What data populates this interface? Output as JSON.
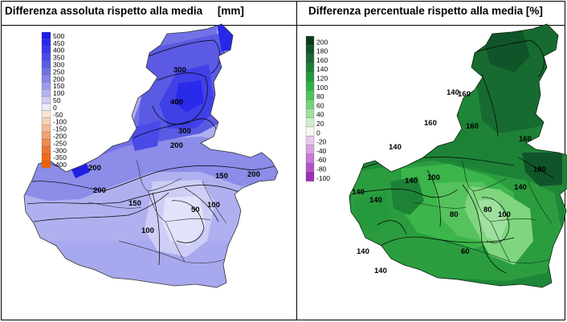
{
  "left_panel": {
    "title": "Differenza assoluta rispetto alla media     [mm]",
    "legend": [
      {
        "label": "500",
        "color": "#1c1ce8"
      },
      {
        "label": "450",
        "color": "#2828ea"
      },
      {
        "label": "400",
        "color": "#3838ec"
      },
      {
        "label": "350",
        "color": "#4a4ae8"
      },
      {
        "label": "300",
        "color": "#5c5ce6"
      },
      {
        "label": "250",
        "color": "#6f6fe6"
      },
      {
        "label": "200",
        "color": "#8585e8"
      },
      {
        "label": "150",
        "color": "#9c9cec"
      },
      {
        "label": "100",
        "color": "#b4b4f0"
      },
      {
        "label": "50",
        "color": "#cfcff6"
      },
      {
        "label": "0",
        "color": "#ececfc"
      },
      {
        "label": "-50",
        "color": "#fbe4d6"
      },
      {
        "label": "-100",
        "color": "#f8cfb6"
      },
      {
        "label": "-150",
        "color": "#f5b894"
      },
      {
        "label": "-200",
        "color": "#f3a273"
      },
      {
        "label": "-250",
        "color": "#f18a50"
      },
      {
        "label": "-300",
        "color": "#f07530"
      },
      {
        "label": "-350",
        "color": "#ef6a18"
      },
      {
        "label": "-400",
        "color": "#ef6200"
      }
    ],
    "isolines": [
      "300",
      "400",
      "300",
      "200",
      "200",
      "200",
      "150",
      "150",
      "100",
      "100",
      "50",
      "200"
    ]
  },
  "right_panel": {
    "title": "Differenza percentuale rispetto alla media [%]",
    "legend": [
      {
        "label": "200",
        "color": "#0a3a1a"
      },
      {
        "label": "180",
        "color": "#10552a"
      },
      {
        "label": "160",
        "color": "#176b30"
      },
      {
        "label": "140",
        "color": "#1d8236"
      },
      {
        "label": "120",
        "color": "#26993d"
      },
      {
        "label": "100",
        "color": "#33b045"
      },
      {
        "label": "80",
        "color": "#4fc35a"
      },
      {
        "label": "60",
        "color": "#74d27a"
      },
      {
        "label": "40",
        "color": "#9fe09f"
      },
      {
        "label": "20",
        "color": "#cdefc8"
      },
      {
        "label": "0",
        "color": "#f5fbf1"
      },
      {
        "label": "-20",
        "color": "#e9c9ef"
      },
      {
        "label": "-40",
        "color": "#d9a2e3"
      },
      {
        "label": "-60",
        "color": "#c77ad6"
      },
      {
        "label": "-80",
        "color": "#b453c9"
      },
      {
        "label": "-100",
        "color": "#9d2db9"
      }
    ],
    "isolines": [
      "160",
      "160",
      "140",
      "140",
      "140",
      "140",
      "140",
      "140",
      "160",
      "100",
      "100",
      "80",
      "80",
      "60",
      "140",
      "180",
      "140",
      "160"
    ]
  }
}
